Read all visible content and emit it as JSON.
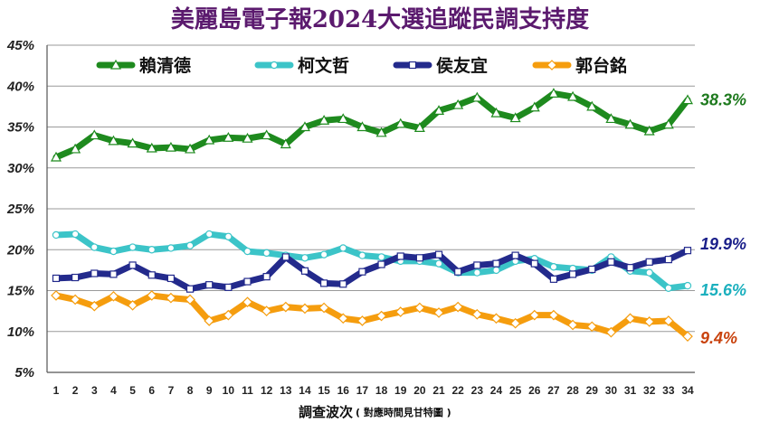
{
  "chart_data": {
    "type": "line",
    "title": "美麗島電子報2024大選追蹤民調支持度",
    "xlabel_main": "調查波次",
    "xlabel_sub": "( 對應時間見甘特圖 )",
    "ylim": [
      5,
      45
    ],
    "yticks": [
      5,
      10,
      15,
      20,
      25,
      30,
      35,
      40,
      45
    ],
    "ytick_labels": [
      "5%",
      "10%",
      "15%",
      "20%",
      "25%",
      "30%",
      "35%",
      "40%",
      "45%"
    ],
    "x": [
      "1",
      "2",
      "3",
      "4",
      "5",
      "6",
      "7",
      "8",
      "9",
      "10",
      "11",
      "12",
      "13",
      "14",
      "15",
      "16",
      "17",
      "18",
      "19",
      "20",
      "21",
      "22",
      "23",
      "24",
      "25",
      "26",
      "27",
      "28",
      "29",
      "30",
      "31",
      "32",
      "33",
      "34"
    ],
    "grid": true,
    "legend_position": "top",
    "series": [
      {
        "name": "賴清德",
        "color": "#1e8a1e",
        "marker": "triangle",
        "values": [
          31.3,
          32.3,
          34.0,
          33.3,
          33.0,
          32.4,
          32.5,
          32.3,
          33.4,
          33.7,
          33.6,
          34.0,
          32.9,
          35.0,
          35.8,
          36.0,
          35.0,
          34.3,
          35.4,
          34.9,
          37.0,
          37.7,
          38.6,
          36.7,
          36.1,
          37.4,
          39.1,
          38.7,
          37.5,
          36.0,
          35.3,
          34.5,
          35.3,
          38.3
        ],
        "end_label": "38.3%"
      },
      {
        "name": "柯文哲",
        "color": "#3cc4c8",
        "marker": "circle",
        "values": [
          21.8,
          21.9,
          20.3,
          19.8,
          20.3,
          20.0,
          20.2,
          20.5,
          21.9,
          21.6,
          19.8,
          19.6,
          19.3,
          19.0,
          19.4,
          20.2,
          19.3,
          19.1,
          18.6,
          18.6,
          18.3,
          17.2,
          17.2,
          17.5,
          18.6,
          18.9,
          17.9,
          17.7,
          17.5,
          19.1,
          17.4,
          17.2,
          15.3,
          15.6
        ],
        "end_label": "15.6%"
      },
      {
        "name": "侯友宜",
        "color": "#232a8c",
        "marker": "square",
        "values": [
          16.5,
          16.6,
          17.1,
          17.0,
          18.1,
          16.9,
          16.5,
          15.2,
          15.7,
          15.4,
          16.1,
          16.7,
          19.1,
          17.4,
          15.9,
          15.8,
          17.3,
          18.2,
          19.2,
          19.0,
          19.4,
          17.3,
          18.1,
          18.3,
          19.3,
          18.3,
          16.4,
          17.0,
          17.6,
          18.5,
          17.8,
          18.5,
          18.8,
          19.9
        ],
        "end_label": "19.9%"
      },
      {
        "name": "郭台銘",
        "color": "#f59d0e",
        "marker": "diamond",
        "values": [
          14.4,
          13.9,
          13.1,
          14.3,
          13.2,
          14.4,
          14.1,
          13.9,
          11.3,
          12.0,
          13.6,
          12.5,
          13.0,
          12.8,
          12.9,
          11.6,
          11.3,
          11.9,
          12.4,
          12.9,
          12.3,
          13.0,
          12.1,
          11.6,
          11.0,
          12.0,
          12.0,
          10.8,
          10.6,
          9.9,
          11.6,
          11.2,
          11.3,
          9.4
        ],
        "end_label": "9.4%"
      }
    ],
    "end_label_colors": [
      "#1e7a1e",
      "#1cb0be",
      "#1a1f8a",
      "#c9430e"
    ]
  }
}
